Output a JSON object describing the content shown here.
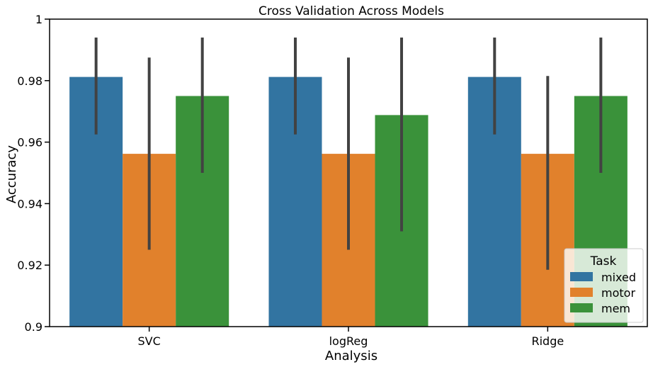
{
  "chart_data": {
    "type": "bar",
    "title": "Cross Validation Across Models",
    "xlabel": "Analysis",
    "ylabel": "Accuracy",
    "ylim": [
      0.9,
      1.0
    ],
    "yticks": [
      0.9,
      0.92,
      0.94,
      0.96,
      0.98,
      1.0
    ],
    "ytick_labels": [
      "0.9",
      "0.92",
      "0.94",
      "0.96",
      "0.98",
      "1"
    ],
    "categories": [
      "SVC",
      "logReg",
      "Ridge"
    ],
    "grid": false,
    "legend": {
      "title": "Task",
      "position": "lower-right"
    },
    "series": [
      {
        "name": "mixed",
        "color": "#3274a1",
        "values": [
          0.9812,
          0.9812,
          0.9812
        ],
        "ci_low": [
          0.9625,
          0.9625,
          0.9625
        ],
        "ci_high": [
          0.994,
          0.994,
          0.994
        ]
      },
      {
        "name": "motor",
        "color": "#e1812c",
        "values": [
          0.9562,
          0.9562,
          0.9562
        ],
        "ci_low": [
          0.925,
          0.925,
          0.9185
        ],
        "ci_high": [
          0.9875,
          0.9875,
          0.9815
        ]
      },
      {
        "name": "mem",
        "color": "#3a923a",
        "values": [
          0.975,
          0.9688,
          0.975
        ],
        "ci_low": [
          0.95,
          0.931,
          0.95
        ],
        "ci_high": [
          0.994,
          0.994,
          0.994
        ]
      }
    ]
  }
}
